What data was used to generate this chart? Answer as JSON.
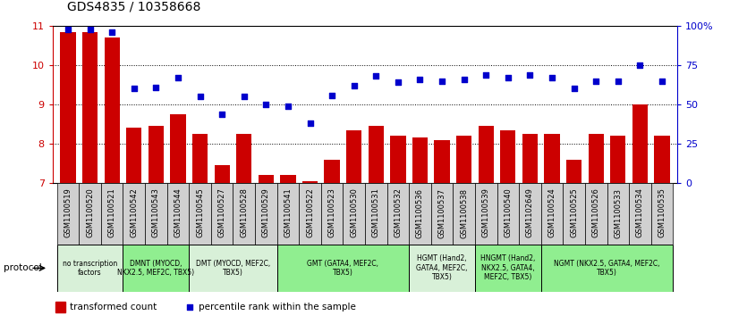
{
  "title": "GDS4835 / 10358668",
  "samples": [
    "GSM1100519",
    "GSM1100520",
    "GSM1100521",
    "GSM1100542",
    "GSM1100543",
    "GSM1100544",
    "GSM1100545",
    "GSM1100527",
    "GSM1100528",
    "GSM1100529",
    "GSM1100541",
    "GSM1100522",
    "GSM1100523",
    "GSM1100530",
    "GSM1100531",
    "GSM1100532",
    "GSM1100536",
    "GSM1100537",
    "GSM1100538",
    "GSM1100539",
    "GSM1100540",
    "GSM1102649",
    "GSM1100524",
    "GSM1100525",
    "GSM1100526",
    "GSM1100533",
    "GSM1100534",
    "GSM1100535"
  ],
  "bar_values": [
    10.85,
    10.85,
    10.7,
    8.4,
    8.45,
    8.75,
    8.25,
    7.45,
    8.25,
    7.2,
    7.2,
    7.05,
    7.6,
    8.35,
    8.45,
    8.2,
    8.15,
    8.1,
    8.2,
    8.45,
    8.35,
    8.25,
    8.25,
    7.6,
    8.25,
    8.2,
    9.0,
    8.2
  ],
  "percentile_values": [
    98,
    98,
    96,
    60,
    61,
    67,
    55,
    44,
    55,
    50,
    49,
    38,
    56,
    62,
    68,
    64,
    66,
    65,
    66,
    69,
    67,
    69,
    67,
    60,
    65,
    65,
    75,
    65
  ],
  "ylim_left": [
    7,
    11
  ],
  "ylim_right": [
    0,
    100
  ],
  "yticks_left": [
    7,
    8,
    9,
    10,
    11
  ],
  "yticks_right": [
    0,
    25,
    50,
    75,
    100
  ],
  "ytick_right_labels": [
    "0",
    "25",
    "50",
    "75",
    "100%"
  ],
  "bar_color": "#cc0000",
  "dot_color": "#0000cc",
  "protocol_groups": [
    {
      "label": "no transcription\nfactors",
      "start": 0,
      "end": 2,
      "color": "#d8f0d8"
    },
    {
      "label": "DMNT (MYOCD,\nNKX2.5, MEF2C, TBX5)",
      "start": 3,
      "end": 5,
      "color": "#90ee90"
    },
    {
      "label": "DMT (MYOCD, MEF2C,\nTBX5)",
      "start": 6,
      "end": 9,
      "color": "#d8f0d8"
    },
    {
      "label": "GMT (GATA4, MEF2C,\nTBX5)",
      "start": 10,
      "end": 15,
      "color": "#90ee90"
    },
    {
      "label": "HGMT (Hand2,\nGATA4, MEF2C,\nTBX5)",
      "start": 16,
      "end": 18,
      "color": "#d8f0d8"
    },
    {
      "label": "HNGMT (Hand2,\nNKX2.5, GATA4,\nMEF2C, TBX5)",
      "start": 19,
      "end": 21,
      "color": "#90ee90"
    },
    {
      "label": "NGMT (NKX2.5, GATA4, MEF2C,\nTBX5)",
      "start": 22,
      "end": 27,
      "color": "#90ee90"
    }
  ],
  "sample_box_color": "#d0d0d0",
  "protocol_label": "protocol",
  "legend_bar_label": "transformed count",
  "legend_dot_label": "percentile rank within the sample",
  "background_color": "#ffffff",
  "yaxis_left_color": "#cc0000",
  "yaxis_right_color": "#0000cc"
}
